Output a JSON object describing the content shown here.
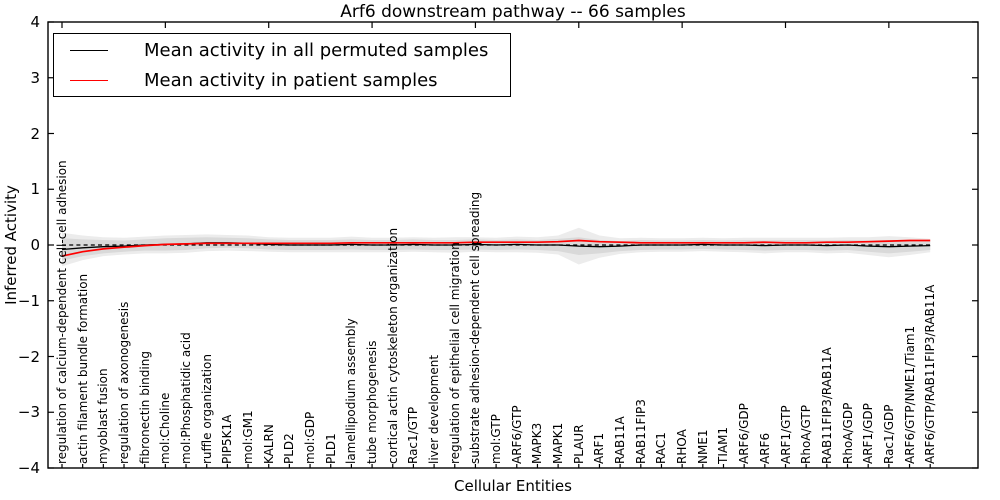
{
  "title": "Arf6 downstream pathway -- 66 samples",
  "legend": {
    "items": [
      {
        "label": "Mean activity in all permuted samples",
        "color": "#000000"
      },
      {
        "label": "Mean activity in patient samples",
        "color": "#ff0000"
      }
    ]
  },
  "axes": {
    "xlabel": "Cellular Entities",
    "ylabel": "Inferred Activity",
    "ytick_labels": [
      "4",
      "3",
      "2",
      "1",
      "0",
      "−1",
      "−2",
      "−3",
      "−4"
    ]
  },
  "chart_data": {
    "type": "line",
    "title": "Arf6 downstream pathway -- 66 samples",
    "xlabel": "Cellular Entities",
    "ylabel": "Inferred Activity",
    "ylim": [
      -4,
      4
    ],
    "yticks": [
      4,
      3,
      2,
      1,
      0,
      -1,
      -2,
      -3,
      -4
    ],
    "grid": false,
    "legend_position": "upper left",
    "zero_line": {
      "style": "dashed",
      "color": "#000000",
      "y": 0
    },
    "categories": [
      "regulation of calcium-dependent cell-cell adhesion",
      "actin filament bundle formation",
      "myoblast fusion",
      "regulation of axonogenesis",
      "fibronectin binding",
      "mol:Choline",
      "mol:Phosphatidic acid",
      "ruffle organization",
      "PIP5K1A",
      "mol:GM1",
      "KALRN",
      "PLD2",
      "mol:GDP",
      "PLD1",
      "lamellipodium assembly",
      "tube morphogenesis",
      "cortical actin cytoskeleton organization",
      "Rac1/GTP",
      "liver development",
      "regulation of epithelial cell migration",
      "substrate adhesion-dependent cell spreading",
      "mol:GTP",
      "ARF6/GTP",
      "MAPK3",
      "MAPK1",
      "PLAUR",
      "ARF1",
      "RAB11A",
      "RAB11FIP3",
      "RAC1",
      "RHOA",
      "NME1",
      "TIAM1",
      "ARF6/GDP",
      "ARF6",
      "ARF1/GTP",
      "RhoA/GTP",
      "RAB11FIP3/RAB11A",
      "RhoA/GDP",
      "ARF1/GDP",
      "Rac1/GDP",
      "ARF6/GTP/NME1/Tiam1",
      "ARF6/GTP/RAB11FIP3/RAB11A"
    ],
    "series": [
      {
        "name": "Mean activity in all permuted samples",
        "color": "#000000",
        "values": [
          -0.08,
          -0.05,
          -0.03,
          -0.02,
          0.0,
          0.01,
          0.02,
          0.04,
          0.04,
          0.03,
          0.01,
          0.0,
          0.0,
          0.0,
          0.01,
          0.0,
          0.0,
          0.01,
          0.0,
          0.0,
          0.01,
          0.0,
          0.01,
          0.0,
          0.0,
          -0.02,
          -0.03,
          -0.02,
          0.0,
          0.0,
          0.0,
          0.01,
          0.0,
          0.0,
          -0.01,
          0.0,
          0.0,
          -0.01,
          0.0,
          -0.02,
          -0.03,
          -0.02,
          -0.01
        ]
      },
      {
        "name": "Mean activity in patient samples",
        "color": "#ff0000",
        "values": [
          -0.2,
          -0.12,
          -0.07,
          -0.04,
          -0.01,
          0.01,
          0.02,
          0.03,
          0.03,
          0.03,
          0.03,
          0.03,
          0.03,
          0.03,
          0.04,
          0.04,
          0.04,
          0.04,
          0.04,
          0.04,
          0.05,
          0.05,
          0.05,
          0.05,
          0.06,
          0.08,
          0.06,
          0.05,
          0.04,
          0.04,
          0.04,
          0.04,
          0.04,
          0.04,
          0.05,
          0.04,
          0.04,
          0.05,
          0.05,
          0.06,
          0.07,
          0.08,
          0.08
        ]
      }
    ],
    "bands": [
      {
        "name": "permuted-activity-outer-range",
        "color": "#ececec",
        "center_series": 0,
        "half_widths": [
          0.3,
          0.22,
          0.17,
          0.15,
          0.15,
          0.16,
          0.16,
          0.15,
          0.14,
          0.14,
          0.13,
          0.13,
          0.13,
          0.13,
          0.14,
          0.13,
          0.13,
          0.13,
          0.13,
          0.14,
          0.13,
          0.13,
          0.14,
          0.14,
          0.17,
          0.33,
          0.2,
          0.14,
          0.13,
          0.12,
          0.12,
          0.12,
          0.12,
          0.13,
          0.14,
          0.13,
          0.13,
          0.14,
          0.14,
          0.16,
          0.19,
          0.16,
          0.12
        ]
      },
      {
        "name": "permuted-activity-inner-range",
        "color": "#d9d9d9",
        "center_series": 0,
        "half_widths": [
          0.2,
          0.15,
          0.12,
          0.1,
          0.1,
          0.11,
          0.11,
          0.1,
          0.09,
          0.09,
          0.09,
          0.09,
          0.09,
          0.09,
          0.09,
          0.09,
          0.09,
          0.09,
          0.09,
          0.09,
          0.09,
          0.09,
          0.09,
          0.09,
          0.11,
          0.16,
          0.12,
          0.09,
          0.09,
          0.08,
          0.08,
          0.08,
          0.08,
          0.09,
          0.09,
          0.09,
          0.09,
          0.09,
          0.09,
          0.1,
          0.12,
          0.1,
          0.08
        ]
      }
    ]
  }
}
